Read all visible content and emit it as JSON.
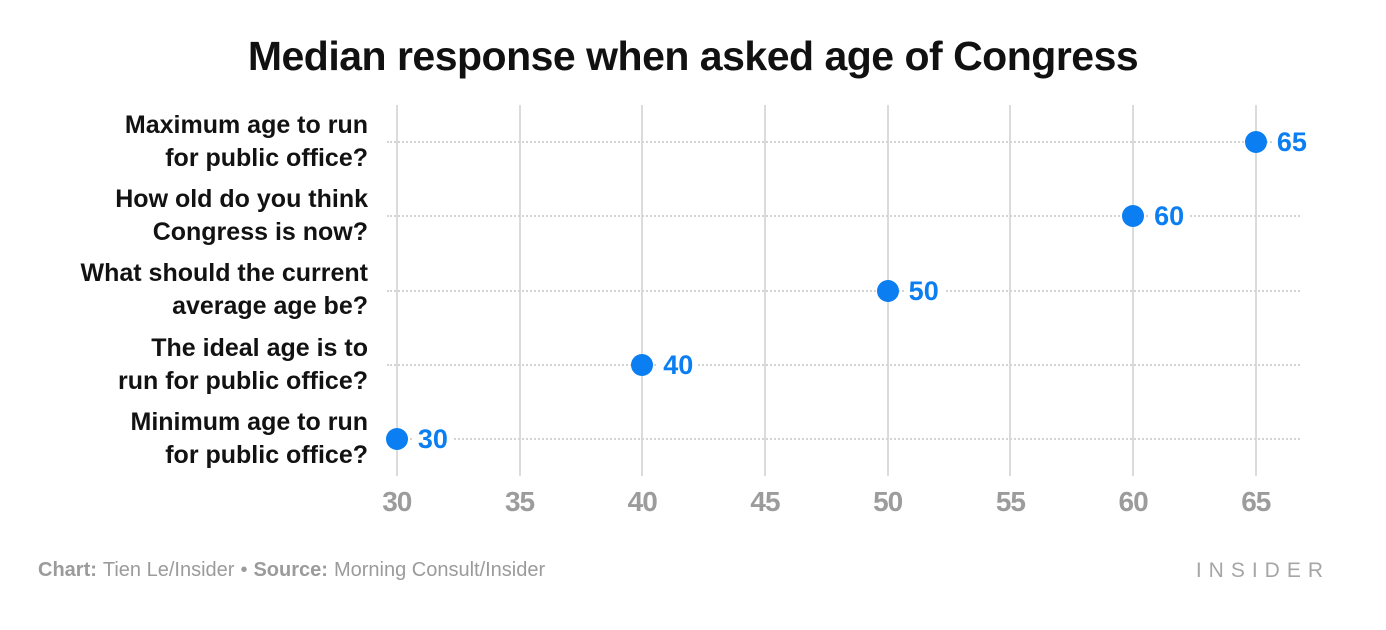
{
  "title": "Median response when asked age of Congress",
  "chart_data": {
    "type": "scatter",
    "orientation": "horizontal-dot-plot",
    "title": "Median response when asked age of Congress",
    "categories": [
      "Maximum age to run\nfor public office?",
      "How old do you think\nCongress is now?",
      "What should the current\naverage age be?",
      "The ideal age is to\nrun for public office?",
      "Minimum age to run\nfor public office?"
    ],
    "values": [
      65,
      60,
      50,
      40,
      30
    ],
    "value_labels": [
      "65",
      "60",
      "50",
      "40",
      "30"
    ],
    "x_ticks": [
      30,
      35,
      40,
      45,
      50,
      55,
      60,
      65
    ],
    "xlim": [
      29.6,
      66.8
    ],
    "xlabel": "",
    "ylabel": "",
    "grid": "vertical solid lines at ticks, horizontal dotted line per row",
    "legend": "none"
  },
  "colors": {
    "dot": "#0b7ef2",
    "value_label": "#0b7ef2",
    "vertical_grid": "#dbdbdb",
    "horizontal_grid": "#d4d4d4",
    "tick_label": "#9c9c9c",
    "category_label": "#121212",
    "title": "#111111",
    "footer_text": "#9b9b9b",
    "brand": "#a6a6a6",
    "background": "#ffffff"
  },
  "footer": {
    "chart_label": "Chart:",
    "chart_credit": "Tien Le/Insider",
    "separator": "•",
    "source_label": "Source:",
    "source_credit": "Morning Consult/Insider",
    "brand": "INSIDER"
  }
}
